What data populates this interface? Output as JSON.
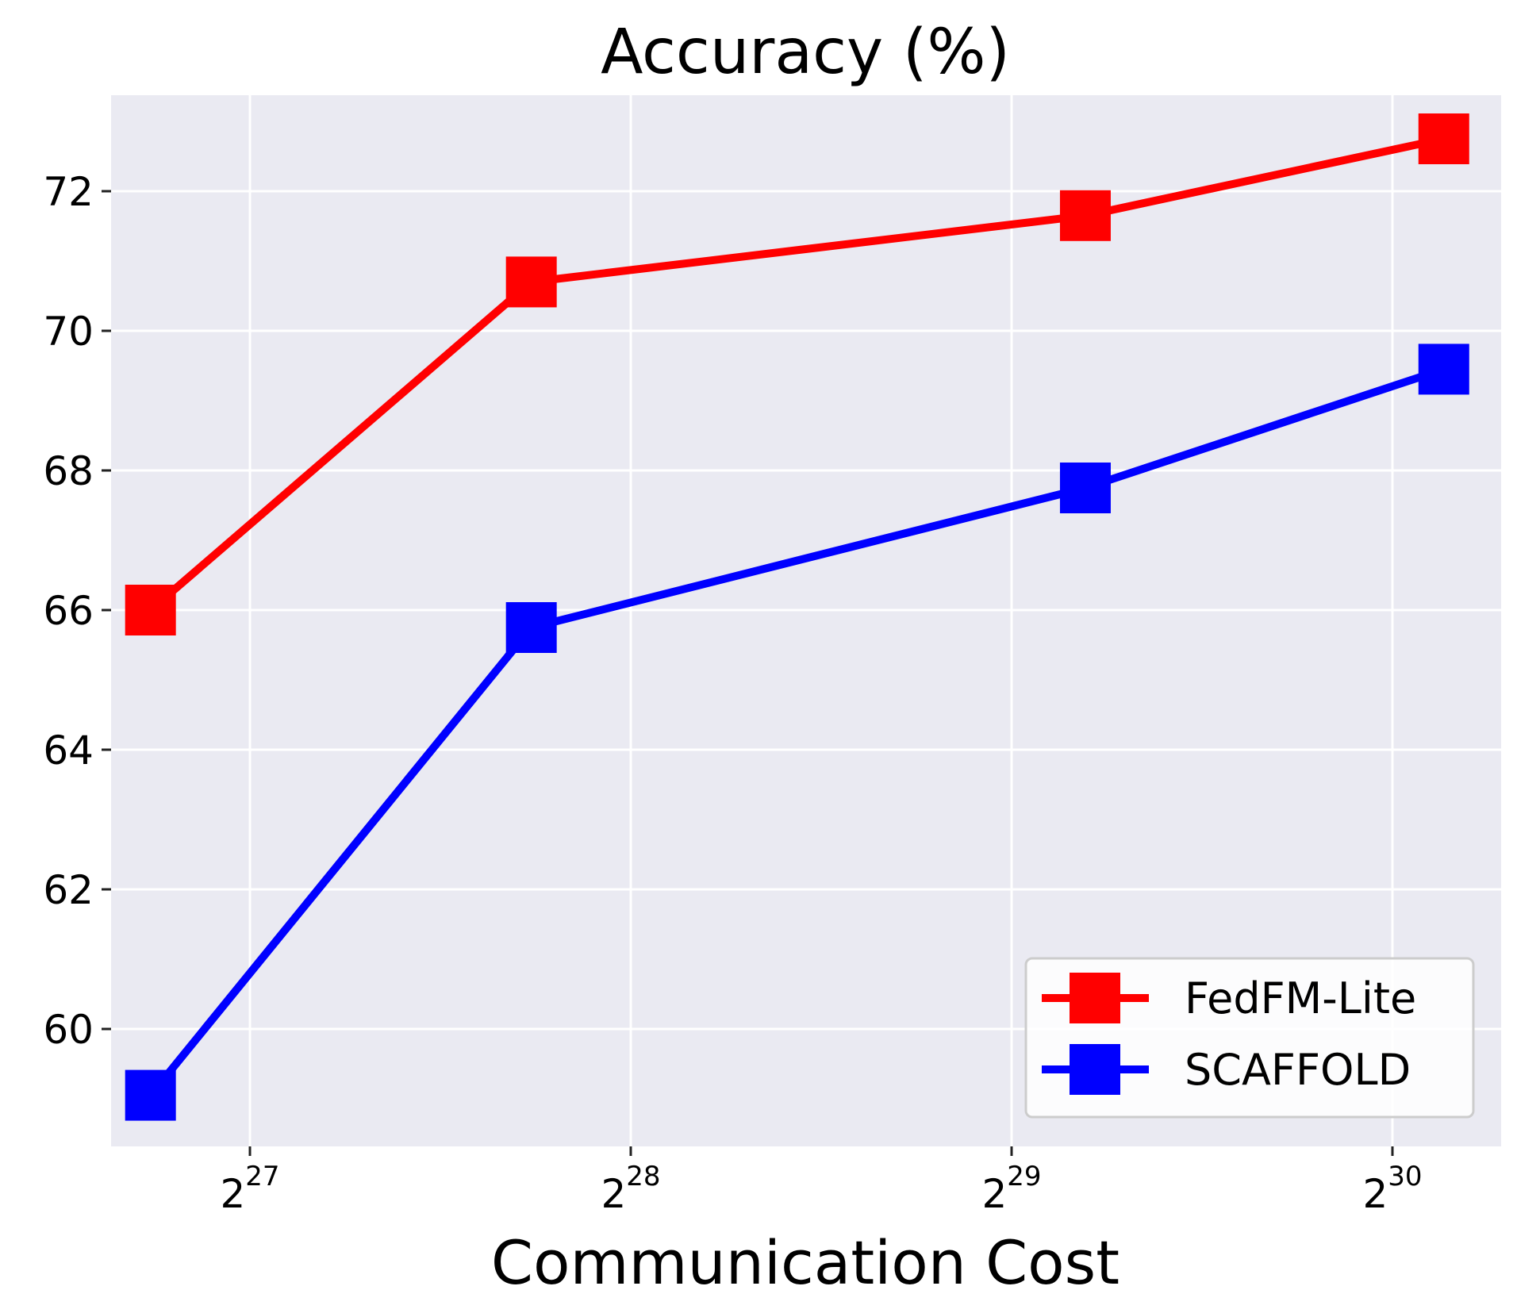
{
  "chart_data": {
    "type": "line",
    "title": "Accuracy (%)",
    "xlabel": "Communication Cost",
    "ylabel": "",
    "x_scale": "log2",
    "x_ticks": [
      {
        "base": "2",
        "exp": "27",
        "value": 134217728
      },
      {
        "base": "2",
        "exp": "28",
        "value": 268435456
      },
      {
        "base": "2",
        "exp": "29",
        "value": 536870912
      },
      {
        "base": "2",
        "exp": "30",
        "value": 1073741824
      }
    ],
    "y_ticks": [
      "60",
      "62",
      "64",
      "66",
      "68",
      "70",
      "72"
    ],
    "ylim": [
      58.2,
      73.5
    ],
    "grid": true,
    "legend_position": "lower-right",
    "series": [
      {
        "name": "FedFM-Lite",
        "color": "#ff0000",
        "marker": "square",
        "points": [
          {
            "x": 112000000,
            "y": 66.0
          },
          {
            "x": 224000000,
            "y": 70.7
          },
          {
            "x": 614000000,
            "y": 71.65
          },
          {
            "x": 1179000000,
            "y": 72.75
          }
        ]
      },
      {
        "name": "SCAFFOLD",
        "color": "#0000ff",
        "marker": "square",
        "points": [
          {
            "x": 112000000,
            "y": 59.05
          },
          {
            "x": 224000000,
            "y": 65.75
          },
          {
            "x": 614000000,
            "y": 67.75
          },
          {
            "x": 1179000000,
            "y": 69.45
          }
        ]
      }
    ]
  },
  "colors": {
    "plot_background": "#eaeaf2",
    "grid": "#ffffff"
  }
}
